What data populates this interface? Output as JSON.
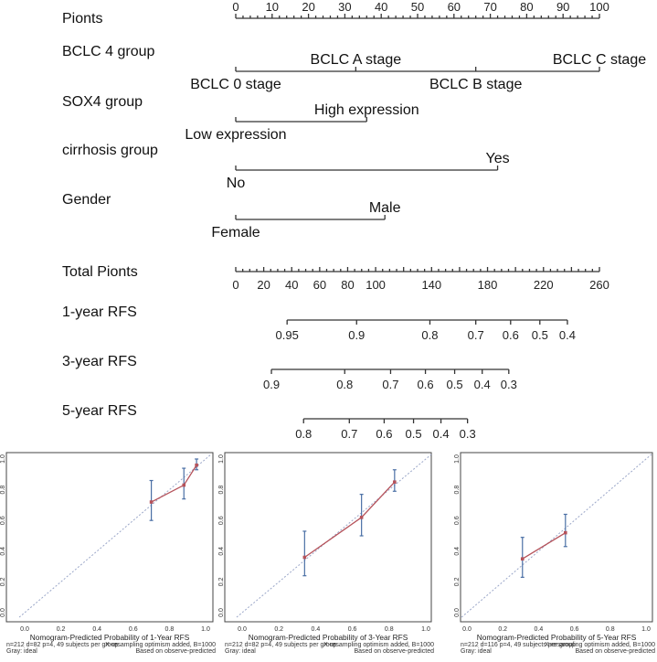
{
  "chart_data": [
    {
      "type": "nomogram",
      "points_scale": {
        "label": "Pionts",
        "range": [
          0,
          100
        ],
        "tick_labels": [
          0,
          10,
          20,
          30,
          40,
          50,
          60,
          70,
          80,
          90,
          100
        ]
      },
      "variables": [
        {
          "label": "BCLC 4 group",
          "levels": [
            {
              "name": "BCLC 0 stage",
              "points": 0
            },
            {
              "name": "BCLC A stage",
              "points": 33
            },
            {
              "name": "BCLC B stage",
              "points": 66
            },
            {
              "name": "BCLC C stage",
              "points": 100
            }
          ]
        },
        {
          "label": "SOX4 group",
          "levels": [
            {
              "name": "Low expression",
              "points": 0
            },
            {
              "name": "High expression",
              "points": 36
            }
          ]
        },
        {
          "label": "cirrhosis group",
          "levels": [
            {
              "name": "No",
              "points": 0
            },
            {
              "name": "Yes",
              "points": 72
            }
          ]
        },
        {
          "label": "Gender",
          "levels": [
            {
              "name": "Female",
              "points": 0
            },
            {
              "name": "Male",
              "points": 41
            }
          ]
        }
      ],
      "total_points": {
        "label": "Total Pionts",
        "range": [
          0,
          260
        ],
        "tick_labels": [
          0,
          20,
          40,
          60,
          80,
          100,
          140,
          180,
          220,
          260
        ]
      },
      "outcomes": [
        {
          "label": "1-year RFS",
          "ticks": [
            {
              "value": "0.95",
              "total_points": 36.7
            },
            {
              "value": "0.9",
              "total_points": 86.4
            },
            {
              "value": "0.8",
              "total_points": 138.8
            },
            {
              "value": "0.7",
              "total_points": 171.6
            },
            {
              "value": "0.6",
              "total_points": 196.5
            },
            {
              "value": "0.5",
              "total_points": 217.4
            },
            {
              "value": "0.4",
              "total_points": 237.1
            }
          ]
        },
        {
          "label": "3-year RFS",
          "ticks": [
            {
              "value": "0.9",
              "total_points": 25.5
            },
            {
              "value": "0.8",
              "total_points": 77.9
            },
            {
              "value": "0.7",
              "total_points": 110.7
            },
            {
              "value": "0.6",
              "total_points": 135.6
            },
            {
              "value": "0.5",
              "total_points": 156.5
            },
            {
              "value": "0.4",
              "total_points": 176.2
            },
            {
              "value": "0.3",
              "total_points": 195.2
            }
          ]
        },
        {
          "label": "5-year RFS",
          "ticks": [
            {
              "value": "0.8",
              "total_points": 48.5
            },
            {
              "value": "0.7",
              "total_points": 81.2
            },
            {
              "value": "0.6",
              "total_points": 106.1
            },
            {
              "value": "0.5",
              "total_points": 127.1
            },
            {
              "value": "0.4",
              "total_points": 146.7
            },
            {
              "value": "0.3",
              "total_points": 165.7
            }
          ]
        }
      ]
    },
    {
      "type": "line",
      "xlabel": "Nomogram-Predicted Probability of 1-Year RFS",
      "xlim": [
        0,
        1
      ],
      "ylim": [
        0,
        1
      ],
      "tick_labels": [
        "0.0",
        "0.2",
        "0.4",
        "0.6",
        "0.8",
        "1.0"
      ],
      "note_left": [
        "n=212 d=82 p=4, 49 subjects per group",
        "Gray: ideal"
      ],
      "note_right": [
        "X-resampling optimism added, B=1000",
        "Based on observe-predicted"
      ],
      "points": [
        {
          "x": 0.7,
          "y": 0.72,
          "lo": 0.6,
          "hi": 0.86
        },
        {
          "x": 0.88,
          "y": 0.83,
          "lo": 0.74,
          "hi": 0.94
        },
        {
          "x": 0.95,
          "y": 0.96,
          "lo": 0.93,
          "hi": 1.0
        }
      ],
      "colors": {
        "observed": "#b5525a",
        "ci": "#4a6fa5",
        "ideal": "#9aa6c8"
      }
    },
    {
      "type": "line",
      "xlabel": "Nomogram-Predicted Probability of 3-Year RFS",
      "xlim": [
        0,
        1
      ],
      "ylim": [
        0,
        1
      ],
      "tick_labels": [
        "0.0",
        "0.2",
        "0.4",
        "0.6",
        "0.8",
        "1.0"
      ],
      "note_left": [
        "n=212 d=82 p=4, 49 subjects per group",
        "Gray: ideal"
      ],
      "note_right": [
        "X-resampling optimism added, B=1000",
        "Based on observe-predicted"
      ],
      "points": [
        {
          "x": 0.34,
          "y": 0.36,
          "lo": 0.24,
          "hi": 0.53
        },
        {
          "x": 0.65,
          "y": 0.62,
          "lo": 0.5,
          "hi": 0.77
        },
        {
          "x": 0.83,
          "y": 0.85,
          "lo": 0.79,
          "hi": 0.93
        }
      ],
      "colors": {
        "observed": "#b5525a",
        "ci": "#4a6fa5",
        "ideal": "#9aa6c8"
      }
    },
    {
      "type": "line",
      "xlabel": "Nomogram-Predicted Probability of 5-Year RFS",
      "xlim": [
        0,
        1
      ],
      "ylim": [
        0,
        1
      ],
      "tick_labels": [
        "0.0",
        "0.2",
        "0.4",
        "0.6",
        "0.8",
        "1.0"
      ],
      "note_left": [
        "n=212 d=116 p=4, 49 subjects per group",
        "Gray: ideal"
      ],
      "note_right": [
        "X-resampling optimism added, B=1000",
        "Based on observe-predicted"
      ],
      "points": [
        {
          "x": 0.31,
          "y": 0.35,
          "lo": 0.23,
          "hi": 0.49
        },
        {
          "x": 0.55,
          "y": 0.52,
          "lo": 0.43,
          "hi": 0.64
        }
      ],
      "colors": {
        "observed": "#b5525a",
        "ci": "#4a6fa5",
        "ideal": "#9aa6c8"
      }
    }
  ]
}
